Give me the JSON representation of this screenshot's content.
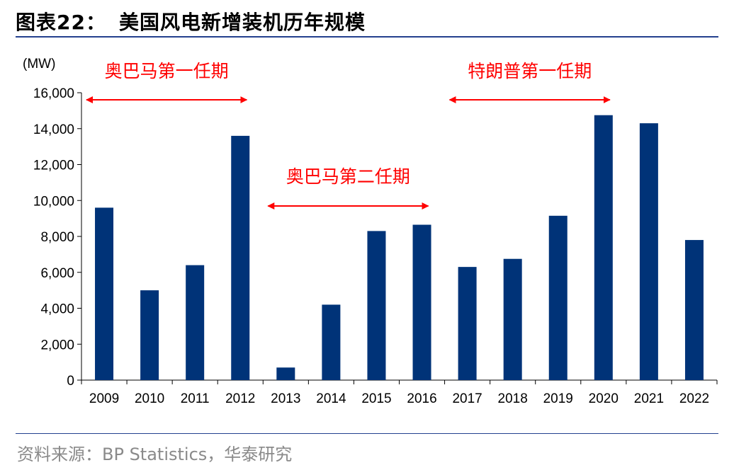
{
  "header": {
    "label": "图表22：",
    "title": "美国风电新增装机历年规模"
  },
  "source": "资料来源：BP Statistics，华泰研究",
  "colors": {
    "bar": "#003378",
    "annotation": "#ff0000",
    "rule": "#23408e"
  },
  "chart_data": {
    "type": "bar",
    "unit_label": "(MW)",
    "categories": [
      "2009",
      "2010",
      "2011",
      "2012",
      "2013",
      "2014",
      "2015",
      "2016",
      "2017",
      "2018",
      "2019",
      "2020",
      "2021",
      "2022"
    ],
    "values": [
      9600,
      5000,
      6400,
      13600,
      700,
      4200,
      8300,
      8650,
      6300,
      6750,
      9150,
      14750,
      14300,
      7800
    ],
    "ylim": [
      0,
      16000
    ],
    "yticks": [
      0,
      2000,
      4000,
      6000,
      8000,
      10000,
      12000,
      14000,
      16000
    ],
    "ytick_labels": [
      "0",
      "2,000",
      "4,000",
      "6,000",
      "8,000",
      "10,000",
      "12,000",
      "14,000",
      "16,000"
    ],
    "grid": false,
    "annotations": [
      {
        "text": "奥巴马第一任期",
        "from": "2009",
        "to": "2012"
      },
      {
        "text": "奥巴马第二任期",
        "from": "2013",
        "to": "2016"
      },
      {
        "text": "特朗普第一任期",
        "from": "2017",
        "to": "2020"
      }
    ]
  }
}
